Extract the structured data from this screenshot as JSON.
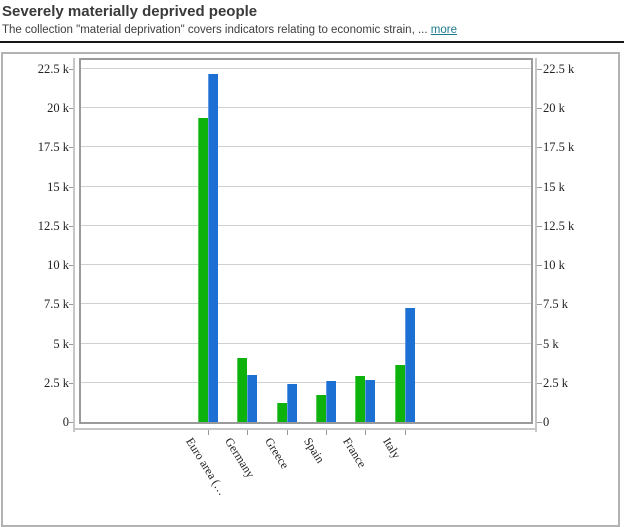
{
  "header": {
    "title": "Severely materially deprived people",
    "subtitle": "The collection \"material deprivation\" covers indicators relating to economic strain, ...",
    "more_label": "more"
  },
  "colors": {
    "link_teal": "#1e798c",
    "series_green": "#0db20d",
    "series_blue": "#1c70d4",
    "gridline": "#d0d0d0",
    "plot_border": "#9a9a9a",
    "axis_line": "#c6c6c6",
    "panel_border": "#b3b3b3",
    "divider": "#161616",
    "tick_text": "#222222"
  },
  "chart_data": {
    "type": "bar",
    "title": "Severely materially deprived people",
    "unit": "thousand persons (axis values shown with k suffix)",
    "categories": [
      "Euro area (…",
      "Germany",
      "Greece",
      "Spain",
      "France",
      "Italy"
    ],
    "series": [
      {
        "name": "series-1",
        "color": "#0db20d",
        "values": [
          19.35,
          4.1,
          1.2,
          1.75,
          2.9,
          3.65
        ]
      },
      {
        "name": "series-2",
        "color": "#1c70d4",
        "values": [
          22.15,
          3.0,
          2.4,
          2.6,
          2.7,
          7.25
        ]
      }
    ],
    "y_ticks": [
      0,
      2.5,
      5,
      7.5,
      10,
      12.5,
      15,
      17.5,
      20,
      22.5
    ],
    "y_tick_labels": [
      "0",
      "2.5 k",
      "5 k",
      "7.5 k",
      "10 k",
      "12.5 k",
      "15 k",
      "17.5 k",
      "20 k",
      "22.5 k"
    ],
    "ylim": [
      0,
      23.2
    ],
    "grid": "horizontal",
    "legend": "none",
    "y_axis_sides": [
      "left",
      "right"
    ],
    "xlabel": "",
    "ylabel": ""
  }
}
